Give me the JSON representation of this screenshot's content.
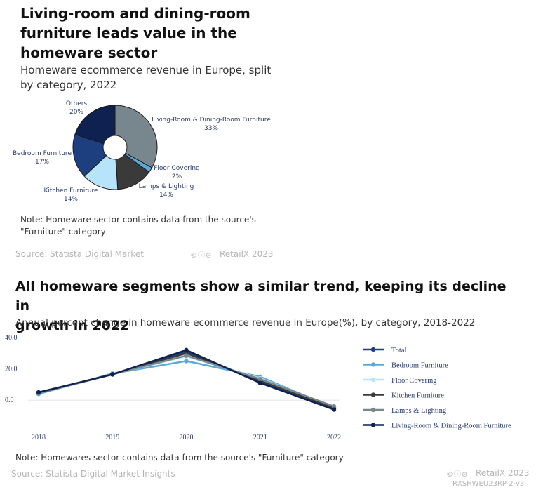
{
  "chart1": {
    "title_lines": [
      "Living-room and dining-room",
      "furniture leads value in the",
      "homeware sector"
    ],
    "subtitle_lines": [
      "Homeware ecommerce revenue in Europe, split",
      "by category, 2022"
    ],
    "note_lines": [
      "Note: Homeware sector contains data from the source's",
      "\"Furniture\" category"
    ],
    "source": "Source: Statista Digital Market",
    "cc_icons": "©ⓘ⊜",
    "brand": "RetailX 2023"
  },
  "chart2": {
    "title_lines": [
      "All homeware segments show a similar trend, keeping its decline in",
      "growth in  2022"
    ],
    "subtitle": "Annual percent change in homeware ecommerce revenue in Europe(%), by category, 2018-2022",
    "note": "Note: Homewares sector contains data from the source's \"Furniture\" category",
    "source": "Source: Statista Digital Market Insights",
    "cc_icons": "©ⓘ⊜",
    "brand": "RetailX 2023",
    "code": "RXSHWEU23RP-2-v3"
  },
  "colors": {
    "navy": "#0e2150",
    "blue": "#1d3f7f",
    "lightblue": "#b7e4fb",
    "dark": "#3a3a3a",
    "grey": "#78878e",
    "mid": "#5aa9dc"
  },
  "chart_data": [
    {
      "type": "pie",
      "title": "Homeware ecommerce revenue in Europe, split by category, 2022",
      "donut": true,
      "slices": [
        {
          "label": "Living-Room & Dining-Room Furniture",
          "pct_label": "33%",
          "value": 33,
          "color": "#78878e"
        },
        {
          "label": "Floor Covering",
          "pct_label": "2%",
          "value": 2,
          "color": "#5aa9dc"
        },
        {
          "label": "Lamps & Lighting",
          "pct_label": "14%",
          "value": 14,
          "color": "#3a3a3a"
        },
        {
          "label": "Kitchen Furniture",
          "pct_label": "14%",
          "value": 14,
          "color": "#b7e4fb"
        },
        {
          "label": "Bedroom Furniture",
          "pct_label": "17%",
          "value": 17,
          "color": "#1d3f7f"
        },
        {
          "label": "Others",
          "pct_label": "20%",
          "value": 20,
          "color": "#0e2150"
        }
      ]
    },
    {
      "type": "line",
      "title": "Annual percent change in homeware ecommerce revenue in Europe(%), by category, 2018-2022",
      "x": [
        "2018",
        "2019",
        "2020",
        "2021",
        "2022"
      ],
      "yticks": [
        0,
        20,
        40
      ],
      "ytick_labels": [
        "0.0",
        "20.0",
        "40.0"
      ],
      "ylim": [
        -8,
        40
      ],
      "series": [
        {
          "name": "Total",
          "color": "#1d3f7f",
          "values": [
            4.5,
            16.5,
            31,
            12,
            -5
          ]
        },
        {
          "name": "Bedroom Furniture",
          "color": "#5aa9dc",
          "values": [
            4,
            17,
            25,
            15,
            -5
          ]
        },
        {
          "name": "Floor Covering",
          "color": "#b7e4fb",
          "values": [
            4.5,
            16.5,
            28,
            14,
            -4.5
          ]
        },
        {
          "name": "Kitchen Furniture",
          "color": "#3a3a3a",
          "values": [
            4.5,
            16.5,
            30,
            12.5,
            -5
          ]
        },
        {
          "name": "Lamps & Lighting",
          "color": "#78878e",
          "values": [
            4.5,
            16.5,
            28.5,
            13.5,
            -4
          ]
        },
        {
          "name": "Living-Room & Dining-Room Furniture",
          "color": "#0e2150",
          "values": [
            5,
            16.5,
            32,
            11,
            -6
          ]
        }
      ],
      "legend": "right"
    }
  ]
}
